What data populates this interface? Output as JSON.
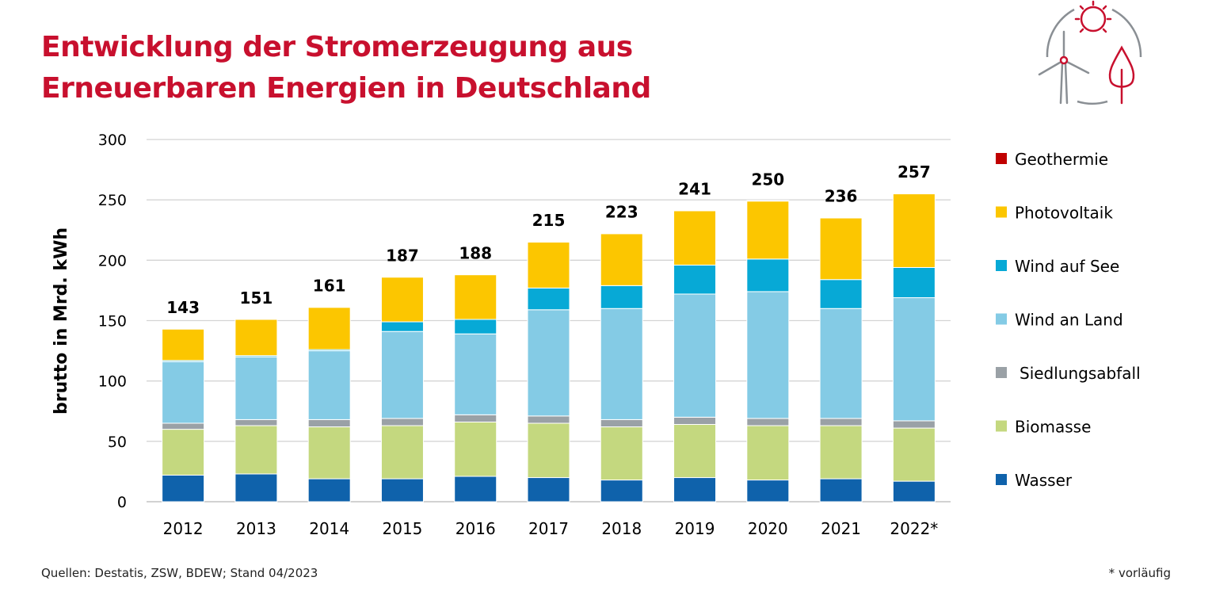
{
  "title": {
    "line1": "Entwicklung der Stromerzeugung aus",
    "line2": "Erneuerbaren Energien in Deutschland"
  },
  "colors": {
    "title": "#c8102e",
    "Wasser": "#0f62ab",
    "Biomasse": "#c4d87f",
    "Siedlungsabfall": "#9aa1a6",
    "Wind an Land": "#84cbe5",
    "Wind auf See": "#07a9d6",
    "Photovoltaik": "#fcc600",
    "Geothermie": "#c00000"
  },
  "chart_data": {
    "type": "bar",
    "stacked": true,
    "title": "Entwicklung der Stromerzeugung aus Erneuerbaren Energien in Deutschland",
    "xlabel": "",
    "ylabel": "brutto in Mrd. kWh",
    "ylim": [
      0,
      300
    ],
    "yticks": [
      0,
      50,
      100,
      150,
      200,
      250,
      300
    ],
    "grid": true,
    "legend_position": "right",
    "categories": [
      "2012",
      "2013",
      "2014",
      "2015",
      "2016",
      "2017",
      "2018",
      "2019",
      "2020",
      "2021",
      "2022*"
    ],
    "series": [
      {
        "name": "Wasser",
        "values": [
          22,
          23,
          19,
          19,
          21,
          20,
          18,
          20,
          18,
          19,
          17
        ]
      },
      {
        "name": "Biomasse",
        "values": [
          38,
          40,
          43,
          44,
          45,
          45,
          44,
          44,
          45,
          44,
          44
        ]
      },
      {
        "name": "Siedlungsabfall",
        "values": [
          5,
          5,
          6,
          6,
          6,
          6,
          6,
          6,
          6,
          6,
          6
        ]
      },
      {
        "name": "Wind an Land",
        "values": [
          51,
          52,
          57,
          72,
          67,
          88,
          92,
          102,
          105,
          91,
          102
        ]
      },
      {
        "name": "Wind auf See",
        "values": [
          1,
          1,
          1,
          8,
          12,
          18,
          19,
          24,
          27,
          24,
          25
        ]
      },
      {
        "name": "Photovoltaik",
        "values": [
          26,
          30,
          35,
          37,
          37,
          38,
          43,
          45,
          48,
          51,
          61
        ]
      },
      {
        "name": "Geothermie",
        "values": [
          0.03,
          0.08,
          0.1,
          0.13,
          0.18,
          0.16,
          0.18,
          0.2,
          0.23,
          0.25,
          0.2
        ]
      }
    ],
    "totals": [
      "143",
      "151",
      "161",
      "187",
      "188",
      "215",
      "223",
      "241",
      "250",
      "236",
      "257"
    ],
    "legend_order": [
      "Geothermie",
      "Photovoltaik",
      "Wind auf See",
      "Wind an Land",
      "Siedlungsabfall",
      "Biomasse",
      "Wasser"
    ]
  },
  "footer": {
    "source": "Quellen: Destatis, ZSW, BDEW; Stand 04/2023",
    "note": "* vorläufig"
  },
  "logo_icon": "renewable-energy-icon"
}
